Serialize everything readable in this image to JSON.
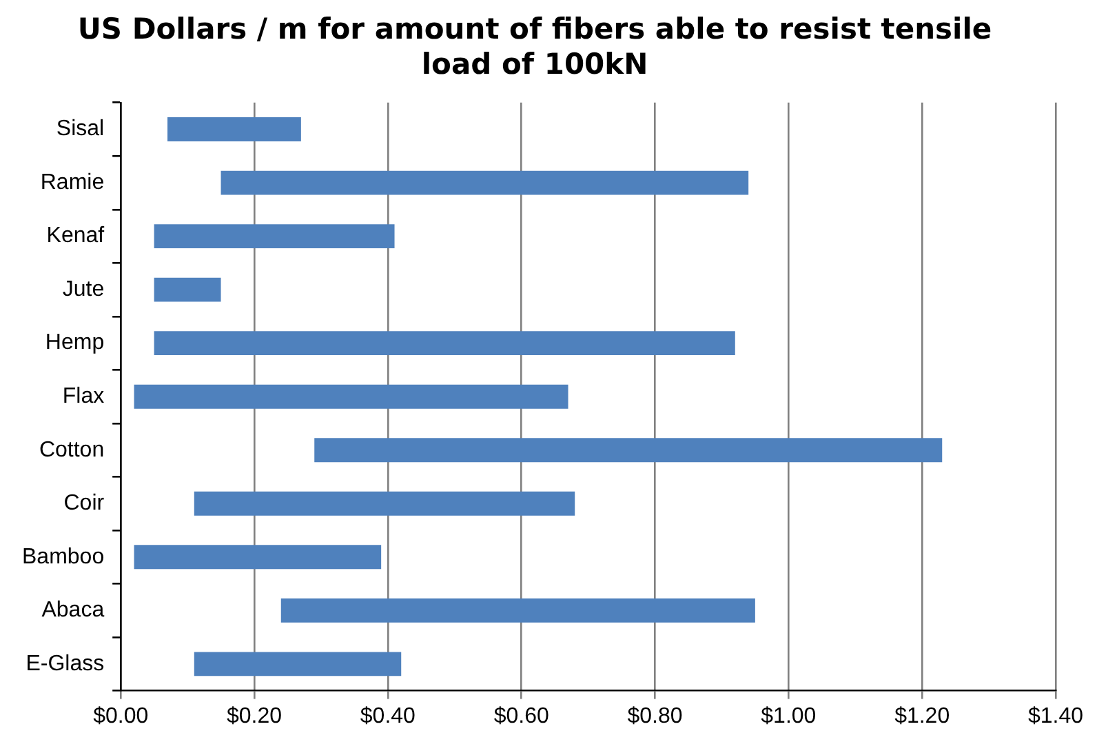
{
  "chart_data": {
    "type": "bar",
    "orientation": "horizontal",
    "title": "US Dollars / m for amount of fibers able to resist tensile load of 100kN",
    "categories": [
      "Sisal",
      "Ramie",
      "Kenaf",
      "Jute",
      "Hemp",
      "Flax",
      "Cotton",
      "Coir",
      "Bamboo",
      "Abaca",
      "E-Glass"
    ],
    "base": [
      0.07,
      0.15,
      0.05,
      0.05,
      0.05,
      0.02,
      0.29,
      0.11,
      0.02,
      0.24,
      0.11
    ],
    "values": [
      0.2,
      0.79,
      0.36,
      0.1,
      0.87,
      0.65,
      0.94,
      0.57,
      0.37,
      0.71,
      0.31
    ],
    "color": "#4f81bd",
    "xlim": [
      0,
      1.4
    ],
    "xticks": [
      {
        "value": 0,
        "label": "$0.00"
      },
      {
        "value": 0.2,
        "label": "$0.20"
      },
      {
        "value": 0.4,
        "label": "$0.40"
      },
      {
        "value": 0.6,
        "label": "$0.60"
      },
      {
        "value": 0.8,
        "label": "$0.80"
      },
      {
        "value": 1.0,
        "label": "$1.00"
      },
      {
        "value": 1.2,
        "label": "$1.20"
      },
      {
        "value": 1.4,
        "label": "$1.40"
      }
    ],
    "grid": "x"
  }
}
